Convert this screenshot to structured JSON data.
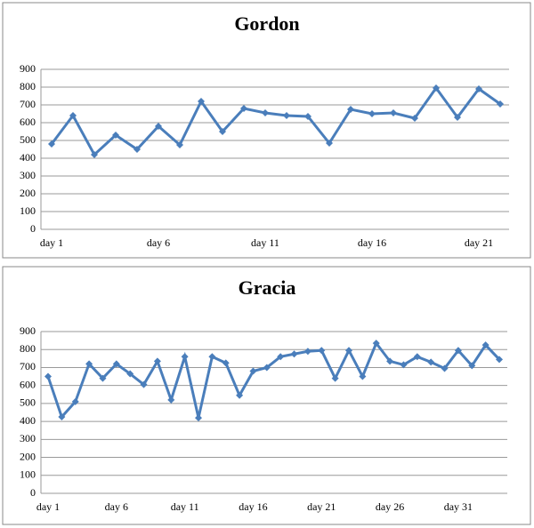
{
  "chart_data": [
    {
      "type": "line",
      "title": "Gordon",
      "categories": [
        "day 1",
        null,
        null,
        null,
        null,
        "day 6",
        null,
        null,
        null,
        null,
        "day 11",
        null,
        null,
        null,
        null,
        "day 16",
        null,
        null,
        null,
        null,
        "day 21",
        null
      ],
      "series": [
        {
          "color": "#4a7ebb",
          "values": [
            480,
            640,
            420,
            530,
            450,
            580,
            475,
            720,
            550,
            680,
            655,
            640,
            635,
            485,
            675,
            650,
            655,
            625,
            795,
            630,
            790,
            705
          ]
        }
      ],
      "ylim": [
        0,
        900
      ],
      "yticks": [
        0,
        100,
        200,
        300,
        400,
        500,
        600,
        700,
        800,
        900
      ],
      "grid": true
    },
    {
      "type": "line",
      "title": "Gracia",
      "categories": [
        "day 1",
        null,
        null,
        null,
        null,
        "day 6",
        null,
        null,
        null,
        null,
        "day 11",
        null,
        null,
        null,
        null,
        "day 16",
        null,
        null,
        null,
        null,
        "day 21",
        null,
        null,
        null,
        null,
        "day 26",
        null,
        null,
        null,
        null,
        "day 31",
        null,
        null,
        null
      ],
      "series": [
        {
          "color": "#4a7ebb",
          "values": [
            650,
            425,
            510,
            720,
            640,
            720,
            665,
            605,
            735,
            520,
            760,
            420,
            760,
            725,
            545,
            680,
            700,
            760,
            775,
            790,
            795,
            640,
            795,
            650,
            835,
            735,
            715,
            760,
            730,
            695,
            795,
            710,
            825,
            745
          ]
        }
      ],
      "ylim": [
        0,
        900
      ],
      "yticks": [
        0,
        100,
        200,
        300,
        400,
        500,
        600,
        700,
        800,
        900
      ],
      "grid": true
    }
  ]
}
